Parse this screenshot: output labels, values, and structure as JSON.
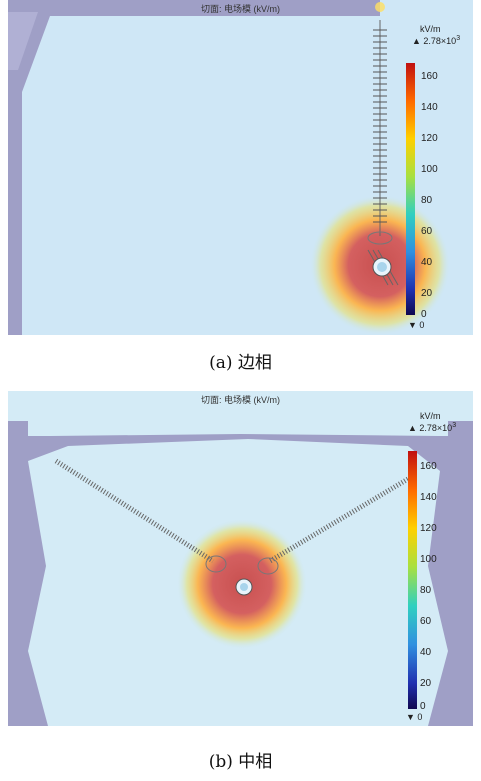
{
  "figures": [
    {
      "plot_title": "切面: 电场模 (kV/m)",
      "unit": "kV/m",
      "max_label": "▲ 2.78×10",
      "max_exp": "3",
      "min_label": "▼ 0",
      "ticks": [
        "160",
        "140",
        "120",
        "100",
        "80",
        "60",
        "40",
        "20",
        "0"
      ],
      "caption": "(a)  边相"
    },
    {
      "plot_title": "切面: 电场模 (kV/m)",
      "unit": "kV/m",
      "max_label": "▲ 2.78×10",
      "max_exp": "3",
      "min_label": "▼ 0",
      "ticks": [
        "160",
        "140",
        "120",
        "100",
        "80",
        "60",
        "40",
        "20",
        "0"
      ],
      "caption": "(b)  中相"
    }
  ],
  "colorbar": {
    "min": 0,
    "max": 160,
    "stops": [
      "#e6e6a0",
      "#c04020",
      "#ff7a00",
      "#ffe000",
      "#6fe060",
      "#20c0d0",
      "#2a6fd8",
      "#2020a0",
      "#140a60"
    ]
  }
}
